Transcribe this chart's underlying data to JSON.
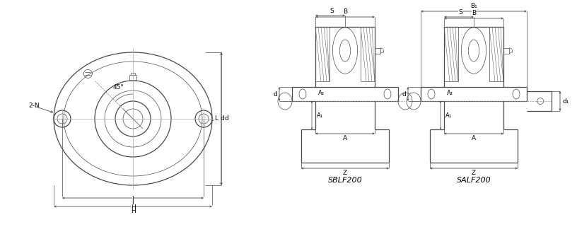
{
  "bg_color": "#ffffff",
  "line_color": "#4a4a4a",
  "lw_thin": 0.5,
  "lw_med": 0.9,
  "lw_thick": 1.3,
  "fs": 6.5,
  "fs_title": 8,
  "label_SBLF200": "SBLF200",
  "label_SALF200": "SALF200",
  "angle_label": "45°",
  "bolt_label": "2-N"
}
